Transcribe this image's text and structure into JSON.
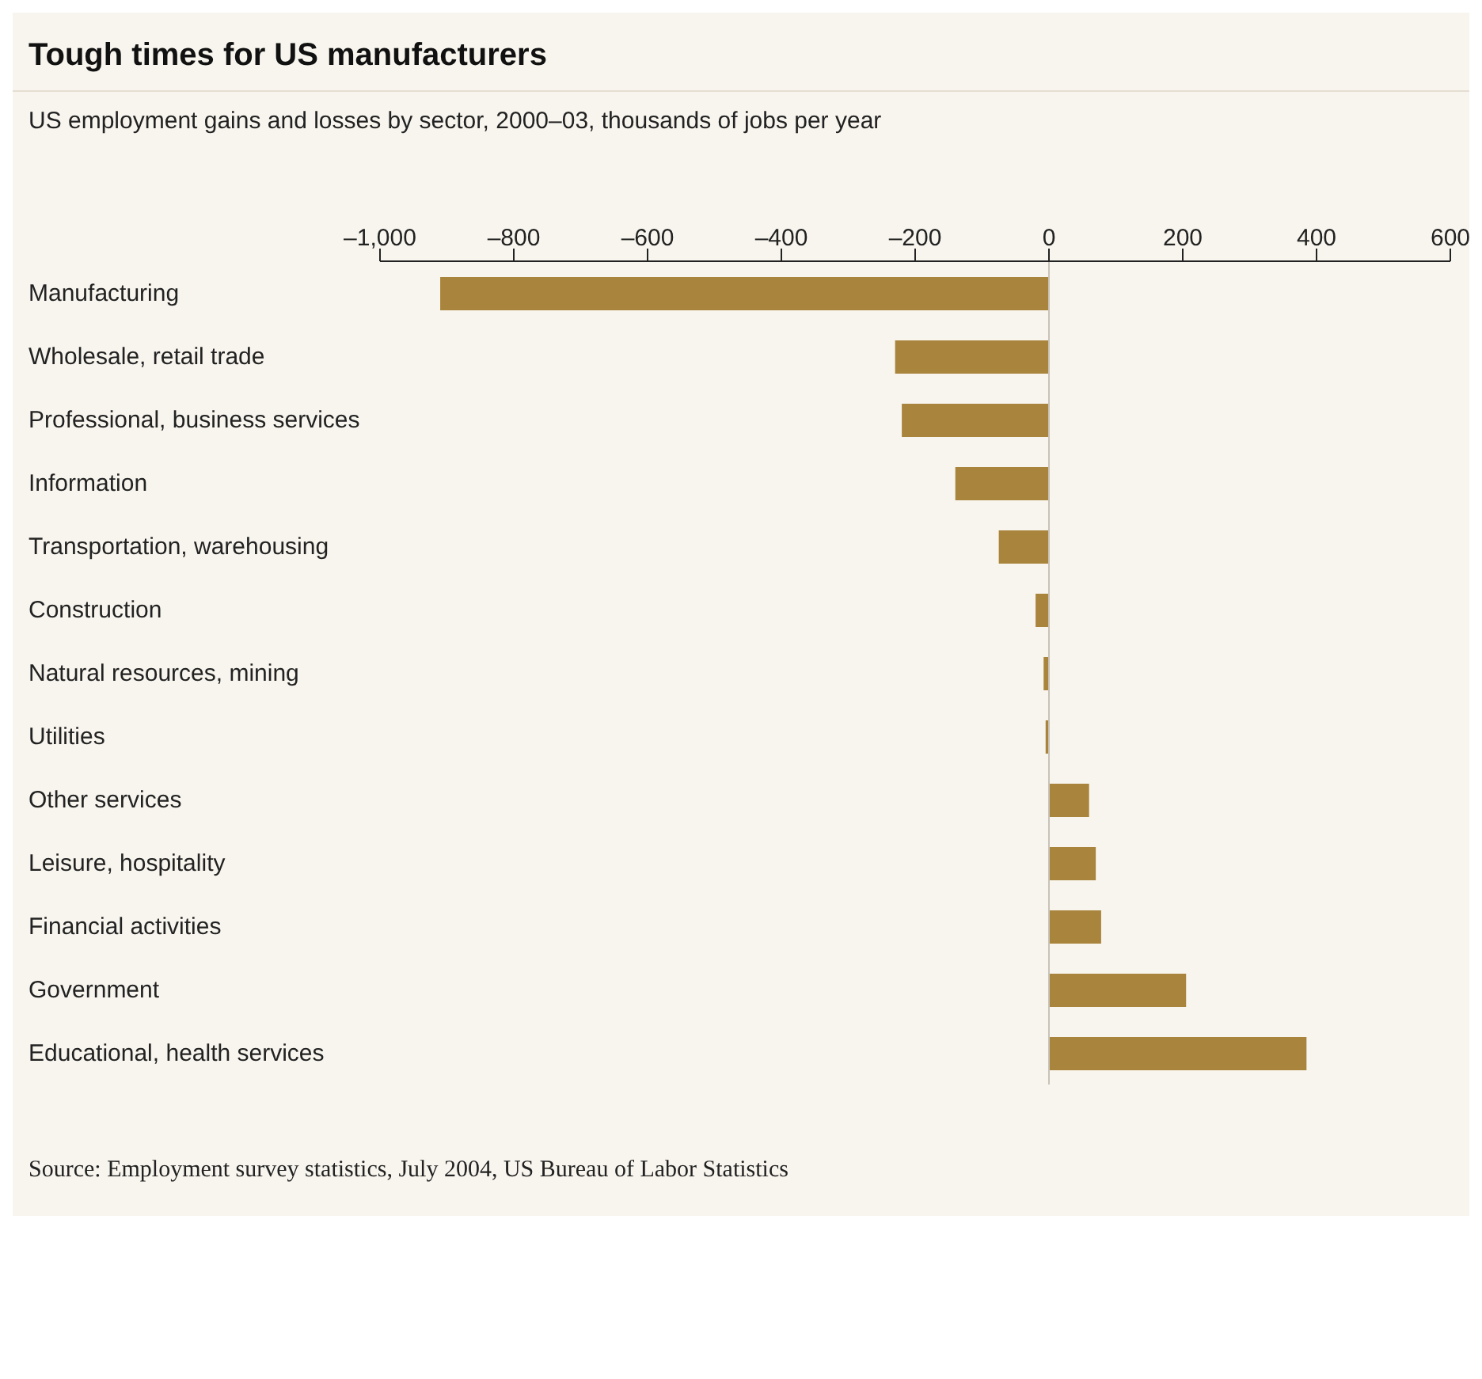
{
  "chart_data": {
    "type": "bar",
    "orientation": "horizontal",
    "title": "Tough times for US manufacturers",
    "subtitle": "US employment gains and losses by sector, 2000–03, thousands of jobs per year",
    "categories": [
      "Manufacturing",
      "Wholesale, retail trade",
      "Professional, business services",
      "Information",
      "Transportation, warehousing",
      "Construction",
      "Natural resources, mining",
      "Utilities",
      "Other services",
      "Leisure, hospitality",
      "Financial activities",
      "Government",
      "Educational, health services"
    ],
    "values": [
      -910,
      -230,
      -220,
      -140,
      -75,
      -20,
      -8,
      -5,
      60,
      70,
      78,
      205,
      385
    ],
    "color": "#a9843c",
    "xlim": [
      -1000,
      600
    ],
    "xticks": [
      {
        "value": -1000,
        "label": "–1,000"
      },
      {
        "value": -800,
        "label": "–800"
      },
      {
        "value": -600,
        "label": "–600"
      },
      {
        "value": -400,
        "label": "–400"
      },
      {
        "value": -200,
        "label": "–200"
      },
      0,
      200,
      400,
      600
    ],
    "ref_lines": [
      {
        "axis": "x",
        "value": 0,
        "color": "#c8c2b8"
      }
    ],
    "grid": false,
    "legend": false,
    "annotations": [
      "Source: Employment survey statistics, July 2004, US Bureau of Labor Statistics"
    ]
  }
}
